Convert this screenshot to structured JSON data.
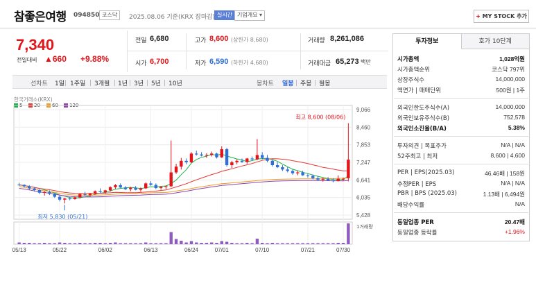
{
  "header": {
    "name": "참좋은여행",
    "code": "094850",
    "market": "코스닥",
    "date": "2025.08.06",
    "basis": "기준(KRX 장마감)",
    "live": "실시간",
    "company_info": "기업개요 ▾",
    "mystock": "MY STOCK 추가"
  },
  "price": {
    "current": "7,340",
    "change_label": "전일대비",
    "change": "▲660",
    "change_pct": "+9.88%"
  },
  "quote": {
    "prev_label": "전일",
    "prev": "6,680",
    "high_label": "고가",
    "high": "8,600",
    "upper_limit": "(상한가 8,680)",
    "volume_label": "거래량",
    "volume": "8,261,086",
    "open_label": "시가",
    "open": "6,700",
    "low_label": "저가",
    "low": "6,590",
    "lower_limit": "(하한가 4,680)",
    "amount_label": "거래대금",
    "amount": "65,273",
    "amount_unit": "백만"
  },
  "toolbar": {
    "line_label": "선차트",
    "periods": [
      "1일",
      "1주일",
      "3개월",
      "1년",
      "3년",
      "5년",
      "10년"
    ],
    "candle_label": "봉차트",
    "candles": [
      "일봉",
      "주봉",
      "월봉"
    ],
    "active_candle": "일봉"
  },
  "chart_meta": {
    "source": "한국거래소(KRX)",
    "ma": [
      {
        "label": "5",
        "color": "#1bb34a"
      },
      {
        "label": "20",
        "color": "#e53935"
      },
      {
        "label": "60",
        "color": "#f59b24"
      },
      {
        "label": "120",
        "color": "#8e44ad"
      }
    ],
    "high_note": "최고 8,600 (08/06)",
    "low_note": "최저 5,830 (05/21)",
    "volume_label": "1거래량",
    "up_color": "#e4141b",
    "down_color": "#2f6fd6"
  },
  "chart_data": {
    "type": "candlestick",
    "y_ticks": [
      9066,
      8460,
      7853,
      7247,
      6641,
      6035,
      5428
    ],
    "ylim": [
      5428,
      9066
    ],
    "x_labels": [
      "05/13",
      "05/22",
      "06/02",
      "06/13",
      "06/24",
      "07/01",
      "07/10",
      "07/21",
      "07/30"
    ],
    "candles": [
      [
        6480,
        6540,
        6430,
        6470
      ],
      [
        6470,
        6490,
        6380,
        6420
      ],
      [
        6420,
        6460,
        6300,
        6350
      ],
      [
        6350,
        6380,
        6240,
        6290
      ],
      [
        6290,
        6320,
        6150,
        6200
      ],
      [
        6200,
        6260,
        6100,
        6220
      ],
      [
        6220,
        6280,
        6120,
        6160
      ],
      [
        6160,
        6180,
        6020,
        6060
      ],
      [
        6060,
        6110,
        5900,
        5960
      ],
      [
        5960,
        6020,
        5830,
        6000
      ],
      [
        6000,
        6050,
        5940,
        5980
      ],
      [
        5980,
        6070,
        5960,
        6040
      ],
      [
        6040,
        6180,
        6000,
        6150
      ],
      [
        6150,
        6230,
        6080,
        6120
      ],
      [
        6120,
        6190,
        6060,
        6170
      ],
      [
        6170,
        6280,
        6130,
        6250
      ],
      [
        6250,
        6350,
        6180,
        6220
      ],
      [
        6220,
        6300,
        6150,
        6280
      ],
      [
        6280,
        6420,
        6240,
        6390
      ],
      [
        6390,
        6500,
        6330,
        6460
      ],
      [
        6460,
        6520,
        6360,
        6380
      ],
      [
        6380,
        6430,
        6290,
        6320
      ],
      [
        6320,
        6400,
        6250,
        6370
      ],
      [
        6370,
        6430,
        6280,
        6300
      ],
      [
        6300,
        6380,
        6230,
        6350
      ],
      [
        6350,
        6560,
        6330,
        6520
      ],
      [
        6520,
        6600,
        6440,
        6470
      ],
      [
        6470,
        6520,
        6320,
        6360
      ],
      [
        6360,
        6430,
        6300,
        6400
      ],
      [
        6400,
        6450,
        6330,
        6420
      ],
      [
        6420,
        8000,
        6400,
        6900
      ],
      [
        6900,
        7200,
        6850,
        7100
      ],
      [
        7100,
        7400,
        7000,
        7300
      ],
      [
        7300,
        7380,
        7180,
        7250
      ],
      [
        7250,
        7600,
        7220,
        7550
      ],
      [
        7550,
        7650,
        7480,
        7520
      ],
      [
        7520,
        7600,
        7450,
        7480
      ],
      [
        7480,
        7560,
        7400,
        7500
      ],
      [
        7500,
        7620,
        7450,
        7550
      ],
      [
        7550,
        7580,
        7380,
        7420
      ],
      [
        7420,
        7800,
        7400,
        7700
      ],
      [
        7700,
        7750,
        7100,
        7150
      ],
      [
        7150,
        7300,
        7050,
        7250
      ],
      [
        7250,
        7350,
        7180,
        7300
      ],
      [
        7300,
        7380,
        7230,
        7260
      ],
      [
        7260,
        7400,
        7200,
        7380
      ],
      [
        7380,
        7450,
        7300,
        7350
      ],
      [
        7350,
        8050,
        7320,
        7500
      ],
      [
        7500,
        7600,
        7350,
        7400
      ],
      [
        7400,
        7500,
        7250,
        7300
      ],
      [
        7300,
        7330,
        7100,
        7150
      ],
      [
        7150,
        7250,
        7050,
        7080
      ],
      [
        7080,
        7150,
        6950,
        7000
      ],
      [
        7000,
        7080,
        6900,
        6950
      ],
      [
        6950,
        7000,
        6820,
        6870
      ],
      [
        6870,
        6950,
        6800,
        6900
      ],
      [
        6900,
        6960,
        6780,
        6800
      ],
      [
        6800,
        6860,
        6720,
        6780
      ],
      [
        6780,
        6830,
        6660,
        6700
      ],
      [
        6700,
        6760,
        6600,
        6650
      ],
      [
        6650,
        6720,
        6580,
        6680
      ],
      [
        6680,
        6740,
        6600,
        6620
      ],
      [
        6620,
        6700,
        6560,
        6600
      ],
      [
        6600,
        6800,
        6590,
        6680
      ],
      [
        6680,
        6720,
        6600,
        6680
      ],
      [
        6700,
        8600,
        6590,
        7340
      ]
    ],
    "volumes": [
      5,
      4,
      4,
      3,
      3,
      4,
      3,
      3,
      5,
      4,
      3,
      3,
      4,
      3,
      3,
      4,
      4,
      3,
      4,
      5,
      3,
      3,
      3,
      3,
      3,
      5,
      3,
      3,
      3,
      3,
      35,
      15,
      10,
      5,
      9,
      5,
      4,
      4,
      5,
      4,
      9,
      7,
      4,
      3,
      3,
      4,
      3,
      16,
      4,
      3,
      4,
      3,
      3,
      3,
      3,
      3,
      3,
      3,
      3,
      3,
      3,
      3,
      3,
      4,
      4,
      60
    ]
  },
  "right_panel": {
    "tabs": [
      "투자정보",
      "호가 10단계"
    ],
    "rows": [
      {
        "k": "시가총액",
        "v": "1,028억원",
        "b": true
      },
      {
        "k": "시가총액순위",
        "v": "코스닥 797위"
      },
      {
        "k": "상장주식수",
        "v": "14,000,000"
      },
      {
        "k": "액면가 | 매매단위",
        "v": "500원 | 1주"
      },
      {
        "k": "외국인한도주식수(A)",
        "v": "14,000,000"
      },
      {
        "k": "외국인보유주식수(B)",
        "v": "752,578"
      },
      {
        "k": "외국인소진율(B/A)",
        "v": "5.38%",
        "b": true
      },
      {
        "k": "투자의견 | 목표주가",
        "v": "N/A | N/A"
      },
      {
        "k": "52주최고 | 최저",
        "v": "8,600 | 4,600"
      },
      {
        "k": "PER | EPS(2025.03)",
        "v": "46.46배 | 158원"
      },
      {
        "k": "추정PER | EPS",
        "v": "N/A | N/A"
      },
      {
        "k": "PBR | BPS (2025.03)",
        "v": "1.13배 | 6,494원"
      },
      {
        "k": "배당수익률",
        "v": "N/A"
      },
      {
        "k": "동일업종 PER",
        "v": "20.47배",
        "b": true
      },
      {
        "k": "동일업종 등락률",
        "v": "+1.96%",
        "red": true
      }
    ]
  }
}
